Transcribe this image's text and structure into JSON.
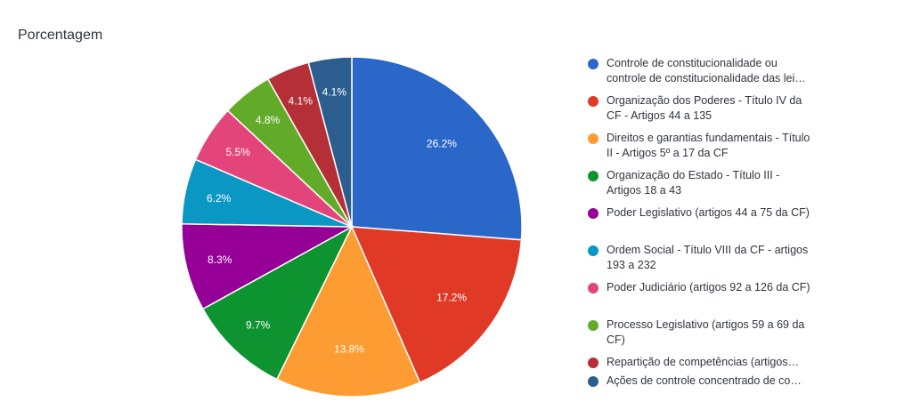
{
  "chart_data": {
    "type": "pie",
    "title": "Porcentagem",
    "slices": [
      {
        "label": "Controle de constitucionalidade ou controle de constitucionalidade das lei…",
        "value": 26.2,
        "display": "26.2%",
        "color": "#2a67c9"
      },
      {
        "label": "Organização dos Poderes - Título IV da CF - Artigos 44 a 135",
        "value": 17.2,
        "display": "17.2%",
        "color": "#e03a27"
      },
      {
        "label": "Direitos e garantias fundamentais - Título II - Artigos 5º a 17 da CF",
        "value": 13.8,
        "display": "13.8%",
        "color": "#fd9c33"
      },
      {
        "label": "Organização do Estado - Título III - Artigos 18 a 43",
        "value": 9.7,
        "display": "9.7%",
        "color": "#0d9431"
      },
      {
        "label": "Poder Legislativo (artigos 44 a 75 da CF)",
        "value": 8.3,
        "display": "8.3%",
        "color": "#960096"
      },
      {
        "label": "Ordem Social - Título VIII da CF - artigos 193 a 232",
        "value": 6.2,
        "display": "6.2%",
        "color": "#0a97c4"
      },
      {
        "label": "Poder Judiciário (artigos 92 a 126 da CF)",
        "value": 5.5,
        "display": "5.5%",
        "color": "#e3457a"
      },
      {
        "label": "Processo Legislativo (artigos 59 a 69 da CF)",
        "value": 4.8,
        "display": "4.8%",
        "color": "#62ab28"
      },
      {
        "label": "Repartição de competências (artigos…",
        "value": 4.1,
        "display": "4.1%",
        "color": "#b52f37"
      },
      {
        "label": "Ações de controle concentrado de co…",
        "value": 4.1,
        "display": "4.1%",
        "color": "#2b5e8f"
      }
    ],
    "legend_position": "right"
  }
}
